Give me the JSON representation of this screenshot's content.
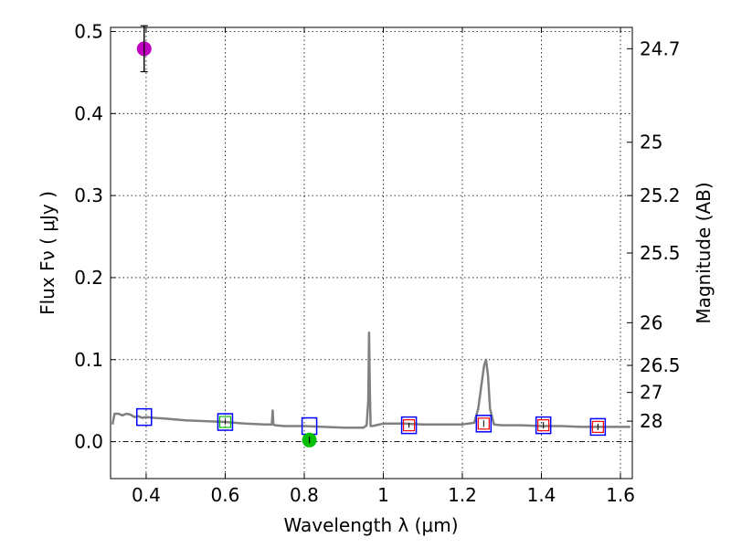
{
  "chart_data": {
    "type": "scatter",
    "xlabel": "Wavelength  λ (μm)",
    "ylabel_left": "Flux  Fν  ( μJy )",
    "ylabel_right": "Magnitude (AB)",
    "xlim": [
      0.31,
      1.63
    ],
    "ylim": [
      -0.045,
      0.505
    ],
    "grid": true,
    "xticks": [
      0.4,
      0.6,
      0.8,
      1.0,
      1.2,
      1.4,
      1.6
    ],
    "xtick_labels": [
      "0.4",
      "0.6",
      "0.8",
      "1",
      "1.2",
      "1.4",
      "1.6"
    ],
    "yticks": [
      0.0,
      0.1,
      0.2,
      0.3,
      0.4,
      0.5
    ],
    "ytick_labels": [
      "0.0",
      "0.1",
      "0.2",
      "0.3",
      "0.4",
      "0.5"
    ],
    "right_ticks": [
      {
        "label": "24.7",
        "flux": 0.479
      },
      {
        "label": "25",
        "flux": 0.365
      },
      {
        "label": "25.2",
        "flux": 0.3
      },
      {
        "label": "25.5",
        "flux": 0.23
      },
      {
        "label": "26",
        "flux": 0.145
      },
      {
        "label": "26.5",
        "flux": 0.093
      },
      {
        "label": "27",
        "flux": 0.06
      },
      {
        "label": "28",
        "flux": 0.025
      }
    ],
    "model_spectrum": {
      "color": "#808080",
      "x": [
        0.315,
        0.32,
        0.33,
        0.34,
        0.35,
        0.36,
        0.37,
        0.38,
        0.39,
        0.4,
        0.42,
        0.45,
        0.5,
        0.55,
        0.6,
        0.65,
        0.7,
        0.718,
        0.72,
        0.722,
        0.726,
        0.75,
        0.8,
        0.85,
        0.9,
        0.95,
        0.958,
        0.962,
        0.964,
        0.966,
        0.968,
        0.972,
        1.0,
        1.05,
        1.1,
        1.15,
        1.2,
        1.23,
        1.24,
        1.25,
        1.255,
        1.26,
        1.265,
        1.27,
        1.28,
        1.3,
        1.35,
        1.4,
        1.45,
        1.5,
        1.55,
        1.6,
        1.625
      ],
      "y": [
        0.021,
        0.034,
        0.034,
        0.032,
        0.034,
        0.033,
        0.03,
        0.031,
        0.029,
        0.03,
        0.029,
        0.028,
        0.026,
        0.025,
        0.024,
        0.022,
        0.021,
        0.021,
        0.038,
        0.021,
        0.02,
        0.019,
        0.019,
        0.018,
        0.017,
        0.017,
        0.02,
        0.05,
        0.133,
        0.06,
        0.019,
        0.019,
        0.022,
        0.022,
        0.021,
        0.021,
        0.021,
        0.023,
        0.04,
        0.075,
        0.093,
        0.1,
        0.08,
        0.04,
        0.021,
        0.02,
        0.02,
        0.019,
        0.019,
        0.018,
        0.018,
        0.018,
        0.018
      ]
    },
    "model_points": {
      "edge_color": "#0000ff",
      "x": [
        0.395,
        0.6,
        0.813,
        1.065,
        1.254,
        1.405,
        1.543
      ],
      "y": [
        0.03,
        0.024,
        0.019,
        0.02,
        0.022,
        0.02,
        0.018
      ]
    },
    "observed_points": [
      {
        "x": 0.395,
        "y": 0.479,
        "yerr": 0.028,
        "color": "#bf00bf",
        "kind": "detection"
      },
      {
        "x": 0.813,
        "y": 0.002,
        "yerr": 0.004,
        "color": "#00bf00",
        "kind": "detection"
      },
      {
        "x": 0.6,
        "y": 0.024,
        "yerr": 0.003,
        "color": "#00bf00",
        "kind": "open"
      },
      {
        "x": 1.065,
        "y": 0.02,
        "yerr": 0.003,
        "color": "#ff0000",
        "kind": "open"
      },
      {
        "x": 1.254,
        "y": 0.022,
        "yerr": 0.004,
        "color": "#ff0000",
        "kind": "open"
      },
      {
        "x": 1.405,
        "y": 0.02,
        "yerr": 0.004,
        "color": "#ff0000",
        "kind": "open"
      },
      {
        "x": 1.543,
        "y": 0.018,
        "yerr": 0.004,
        "color": "#ff0000",
        "kind": "open"
      }
    ],
    "zero_line": 0.0
  }
}
